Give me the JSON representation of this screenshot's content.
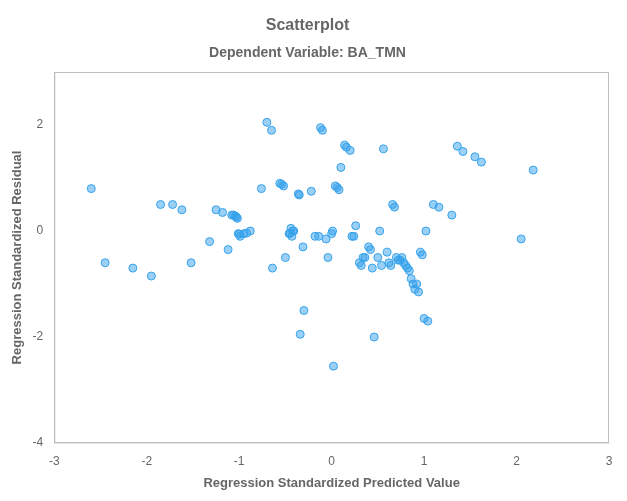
{
  "chart_data": {
    "type": "scatter",
    "title": "Scatterplot",
    "subtitle": "Dependent Variable: BA_TMN",
    "xlabel": "Regression Standardized Predicted Value",
    "ylabel": "Regression Standardized Residual",
    "xlim": [
      -3,
      3
    ],
    "ylim": [
      -4,
      3
    ],
    "xticks": [
      -3,
      -2,
      -1,
      0,
      1,
      2,
      3
    ],
    "yticks": [
      -4,
      -2,
      0,
      2
    ],
    "grid": false,
    "x": [
      -2.6,
      -2.45,
      -2.15,
      -1.95,
      -1.85,
      -1.72,
      -1.62,
      -1.52,
      -1.32,
      -1.25,
      -1.18,
      -1.12,
      -1.08,
      -1.06,
      -1.04,
      -1.03,
      -1.02,
      -1.01,
      -1.0,
      -0.99,
      -0.95,
      -0.92,
      -0.88,
      -0.76,
      -0.7,
      -0.65,
      -0.64,
      -0.56,
      -0.54,
      -0.52,
      -0.5,
      -0.46,
      -0.45,
      -0.44,
      -0.43,
      -0.42,
      -0.41,
      -0.36,
      -0.35,
      -0.34,
      -0.31,
      -0.3,
      -0.22,
      -0.18,
      -0.14,
      -0.12,
      -0.1,
      -0.06,
      -0.04,
      0.0,
      0.01,
      0.02,
      0.04,
      0.06,
      0.08,
      0.1,
      0.14,
      0.16,
      0.2,
      0.22,
      0.24,
      0.26,
      0.3,
      0.32,
      0.34,
      0.36,
      0.4,
      0.42,
      0.44,
      0.46,
      0.5,
      0.52,
      0.54,
      0.56,
      0.6,
      0.62,
      0.64,
      0.66,
      0.68,
      0.7,
      0.72,
      0.74,
      0.76,
      0.78,
      0.8,
      0.82,
      0.84,
      0.86,
      0.88,
      0.9,
      0.92,
      0.94,
      0.96,
      0.98,
      1.0,
      1.02,
      1.04,
      1.1,
      1.16,
      1.3,
      1.36,
      1.42,
      1.55,
      1.62,
      2.05,
      2.18
    ],
    "values": [
      0.8,
      -0.6,
      -0.7,
      -0.85,
      0.5,
      0.5,
      0.4,
      -0.6,
      -0.2,
      0.4,
      0.35,
      -0.35,
      0.3,
      0.3,
      0.28,
      0.26,
      0.24,
      -0.05,
      -0.06,
      -0.1,
      -0.05,
      -0.04,
      0.0,
      0.8,
      2.05,
      1.9,
      -0.7,
      0.9,
      0.88,
      0.85,
      -0.5,
      -0.05,
      -0.04,
      0.05,
      -0.1,
      0.0,
      0.0,
      0.7,
      0.68,
      -1.95,
      -0.3,
      -1.5,
      0.75,
      -0.1,
      -0.1,
      1.95,
      1.9,
      -0.15,
      -0.5,
      -0.05,
      0.0,
      -2.55,
      0.85,
      0.82,
      0.78,
      1.2,
      1.62,
      1.58,
      1.52,
      -0.1,
      -0.1,
      0.1,
      -0.6,
      -0.65,
      -0.5,
      -0.5,
      -0.3,
      -0.35,
      -0.7,
      -2.0,
      -0.5,
      0.0,
      -0.65,
      1.55,
      -0.4,
      -0.6,
      -0.65,
      0.5,
      0.45,
      -0.5,
      -0.55,
      -0.55,
      -0.5,
      -0.6,
      -0.65,
      -0.7,
      -0.75,
      -0.9,
      -1.0,
      -1.1,
      -1.0,
      -1.15,
      -0.4,
      -0.45,
      -1.65,
      0.0,
      -1.7,
      0.5,
      0.45,
      0.3,
      1.6,
      1.5,
      1.4,
      1.3,
      -0.15,
      1.15
    ]
  }
}
